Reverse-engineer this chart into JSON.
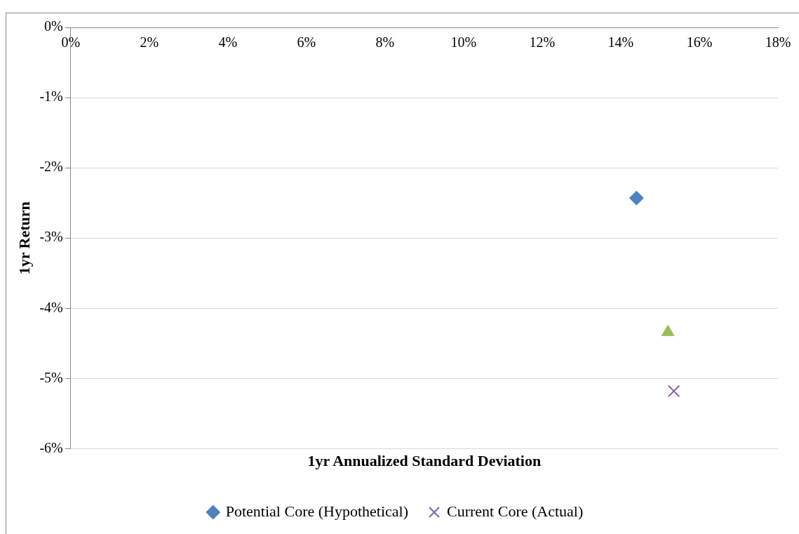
{
  "chart_data": {
    "type": "scatter",
    "xlabel": "1yr Annualized Standard Deviation",
    "ylabel": "1yr Return",
    "xlim": [
      0,
      18
    ],
    "xticks": [
      {
        "value": 0,
        "label": "0%"
      },
      {
        "value": 2,
        "label": "2%"
      },
      {
        "value": 4,
        "label": "4%"
      },
      {
        "value": 6,
        "label": "6%"
      },
      {
        "value": 8,
        "label": "8%"
      },
      {
        "value": 10,
        "label": "10%"
      },
      {
        "value": 12,
        "label": "12%"
      },
      {
        "value": 14,
        "label": "14%"
      },
      {
        "value": 16,
        "label": "16%"
      },
      {
        "value": 18,
        "label": "18%"
      }
    ],
    "ylim": [
      -6,
      0
    ],
    "yticks": [
      {
        "value": 0,
        "label": "0%"
      },
      {
        "value": -1,
        "label": "-1%"
      },
      {
        "value": -2,
        "label": "-2%"
      },
      {
        "value": -3,
        "label": "-3%"
      },
      {
        "value": -4,
        "label": "-4%"
      },
      {
        "value": -5,
        "label": "-5%"
      },
      {
        "value": -6,
        "label": "-6%"
      }
    ],
    "grid": "y",
    "legend": "bottom",
    "series": [
      {
        "color": "#9bbb59",
        "marker": "triangle",
        "x": [
          15.2
        ],
        "values": [
          -4.34
        ]
      },
      {
        "name": "Potential Core (Hypothetical)",
        "color": "#4f81bd",
        "marker": "diamond",
        "x": [
          14.4
        ],
        "values": [
          -2.43
        ]
      },
      {
        "name": "Current Core (Actual)",
        "color": "#8064a2",
        "marker": "cross",
        "x": [
          15.35
        ],
        "values": [
          -5.18
        ]
      }
    ]
  }
}
